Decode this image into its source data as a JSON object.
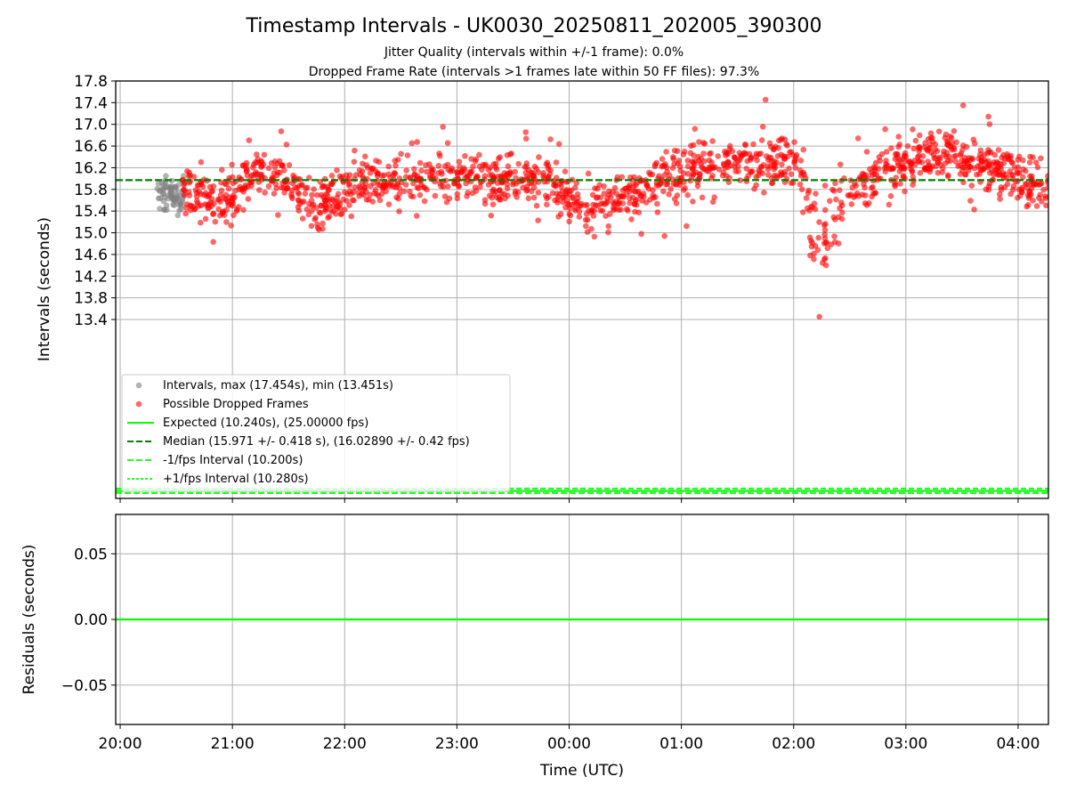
{
  "figure": {
    "title": "Timestamp Intervals - UK0030_20250811_202005_390300",
    "subtitle1": "Jitter Quality (intervals within +/-1 frame): 0.0%",
    "subtitle2": "Dropped Frame Rate (intervals >1 frames late within 50 FF files): 97.3%"
  },
  "colors": {
    "gray": "#808080",
    "red": "#ff0000",
    "expected": "#00ff00",
    "median": "#008000",
    "bounds": "#22ff22",
    "grid": "#b0b0b0"
  },
  "chart_data": [
    {
      "type": "scatter",
      "ylabel": "Intervals (seconds)",
      "y_ticks": [
        13.4,
        13.8,
        14.2,
        14.6,
        15.0,
        15.4,
        15.8,
        16.2,
        16.6,
        17.0,
        17.4,
        17.8
      ],
      "ylim": [
        10.1,
        17.8
      ],
      "x_ticks": [
        "20:00",
        "21:00",
        "22:00",
        "23:00",
        "00:00",
        "01:00",
        "02:00",
        "03:00",
        "04:00"
      ],
      "xlim_hours": [
        -0.04,
        8.27
      ],
      "grid": true,
      "legend_position": "lower-left",
      "legend": [
        "Intervals, max (17.454s), min (13.451s)",
        "Possible Dropped Frames",
        "Expected (10.240s), (25.00000 fps)",
        "Median (15.971 +/- 0.418 s), (16.02890 +/- 0.42 fps)",
        "-1/fps Interval (10.200s)",
        "+1/fps Interval (10.280s)"
      ],
      "reference_lines": {
        "expected": 10.24,
        "median": 15.971,
        "minus_one_frame": 10.2,
        "plus_one_frame": 10.28
      },
      "trend_hours": [
        0.33,
        0.55,
        0.75,
        0.95,
        1.15,
        1.3,
        1.45,
        1.6,
        1.75,
        1.9,
        2.1,
        2.3,
        2.5,
        2.7,
        3.0,
        3.3,
        3.6,
        3.85,
        4.0,
        4.15,
        4.4,
        4.6,
        4.8,
        5.0,
        5.3,
        5.6,
        5.9,
        6.05,
        6.15,
        6.28,
        6.4,
        6.55,
        6.75,
        7.0,
        7.2,
        7.4,
        7.65,
        7.9,
        8.1,
        8.27
      ],
      "trend_values": [
        15.65,
        15.85,
        15.7,
        15.55,
        16.0,
        16.2,
        16.0,
        15.7,
        15.5,
        15.7,
        15.85,
        15.95,
        16.0,
        16.05,
        16.0,
        15.95,
        16.0,
        15.85,
        15.6,
        15.45,
        15.55,
        15.8,
        16.0,
        16.1,
        16.25,
        16.3,
        16.3,
        16.3,
        15.3,
        14.7,
        15.6,
        15.9,
        16.05,
        16.3,
        16.4,
        16.55,
        16.3,
        16.15,
        15.9,
        15.85
      ],
      "gray_range_hours": [
        0.33,
        0.57
      ],
      "gray_median": 15.68,
      "red_count": 1580,
      "gray_count": 70,
      "max_point": {
        "hour": 5.75,
        "value": 17.454
      },
      "min_point": {
        "hour": 6.23,
        "value": 13.451
      }
    },
    {
      "type": "line",
      "ylabel": "Residuals (seconds)",
      "xlabel": "Time (UTC)",
      "y_tick_labels": [
        "0.05",
        "0.00",
        "−0.05"
      ],
      "y_tick_values": [
        0.05,
        0.0,
        -0.05
      ],
      "ylim": [
        -0.08,
        0.08
      ],
      "x_ticks": [
        "20:00",
        "21:00",
        "22:00",
        "23:00",
        "00:00",
        "01:00",
        "02:00",
        "03:00",
        "04:00"
      ],
      "series": [
        {
          "values": [
            0.0,
            0.0
          ]
        }
      ],
      "grid": true
    }
  ]
}
